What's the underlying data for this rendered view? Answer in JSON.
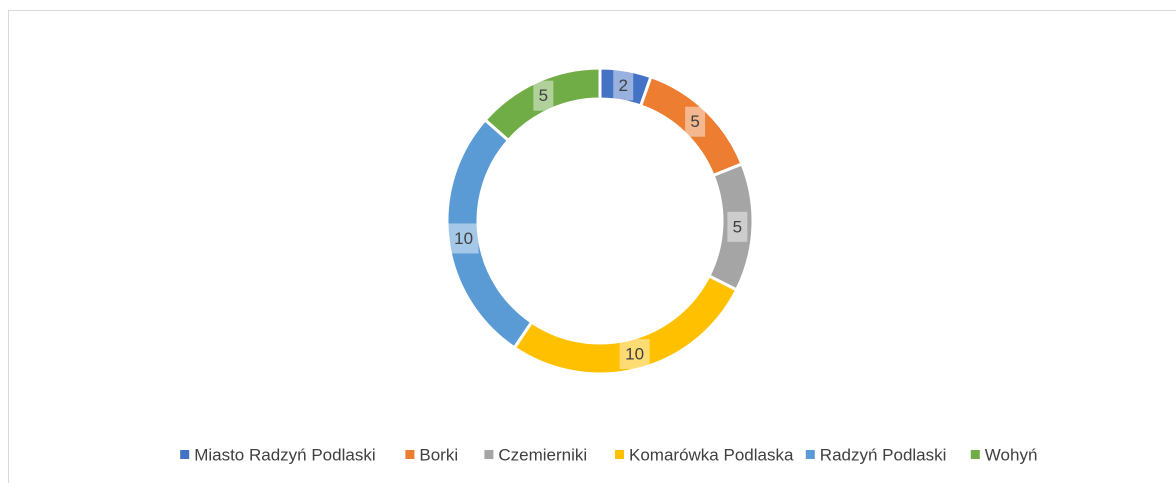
{
  "chart_data": {
    "type": "doughnut",
    "categories": [
      "Miasto Radzyń Podlaski",
      "Borki",
      "Czemierniki",
      "Komarówka Podlaska",
      "Radzyń Podlaski",
      "Wohyń"
    ],
    "values": [
      2,
      5,
      5,
      10,
      10,
      5
    ],
    "colors": [
      "#4472c4",
      "#ed7d31",
      "#a5a5a5",
      "#ffc000",
      "#5b9bd5",
      "#70ad47"
    ],
    "legend": "bottom"
  }
}
